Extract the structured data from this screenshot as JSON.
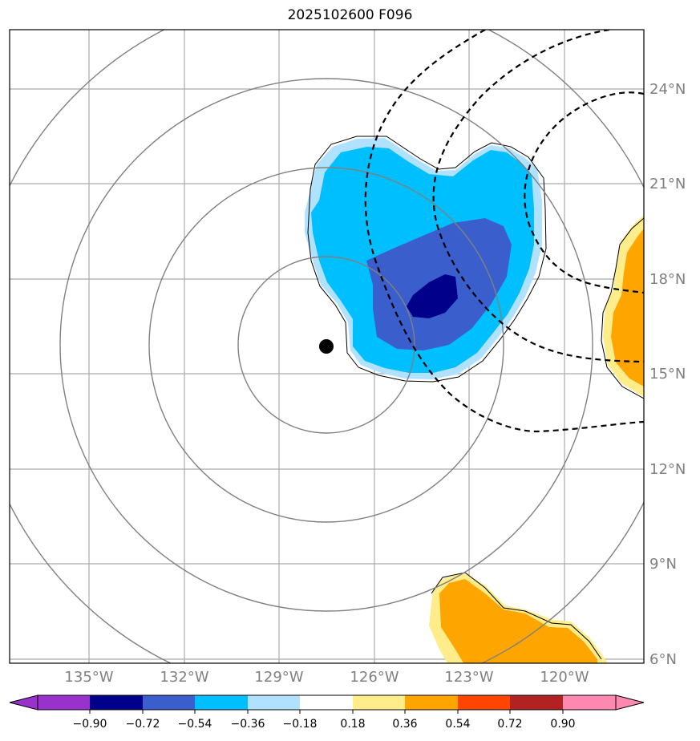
{
  "title": "2025102600 F096",
  "lon_labels": [
    "135°W",
    "132°W",
    "129°W",
    "126°W",
    "123°W",
    "120°W"
  ],
  "lat_labels": [
    "24°N",
    "21°N",
    "18°N",
    "15°N",
    "12°N",
    "9°N",
    "6°N"
  ],
  "colorbar": {
    "ticks": [
      "−0.90",
      "−0.72",
      "−0.54",
      "−0.36",
      "−0.18",
      "0.18",
      "0.36",
      "0.54",
      "0.72",
      "0.90"
    ],
    "colors": [
      "#9932cc",
      "#00008b",
      "#3a5fcd",
      "#00bfff",
      "#b0e2ff",
      "#ffffff",
      "#ffec8b",
      "#ffa500",
      "#ff4500",
      "#b22222",
      "#ff88b0"
    ]
  },
  "map": {
    "lon_range": [
      "137.5°W",
      "117.5°W"
    ],
    "lat_range": [
      "6°N",
      "26°N"
    ],
    "storm_center": {
      "lon": -127.5,
      "lat": 15.9
    },
    "colors": {
      "grid": "#aaaaaa",
      "rings": "#808080"
    }
  }
}
